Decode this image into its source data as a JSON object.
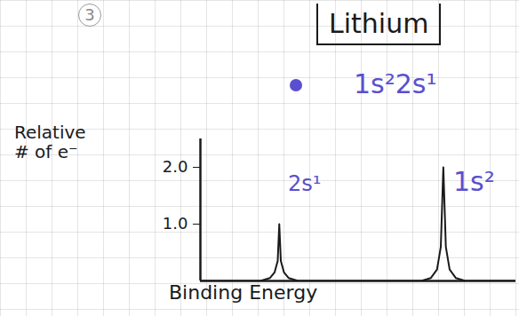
{
  "chart_data": {
    "type": "line",
    "title": "Lithium",
    "question_number": "3",
    "ylabel": "Relative # of e⁻",
    "xlabel": "Binding Energy",
    "annotations": [
      "1s²2s¹",
      "2s¹",
      "1s²"
    ],
    "x": [
      0,
      1.9,
      2.2,
      2.35,
      2.45,
      2.5,
      2.55,
      2.65,
      2.8,
      3.1,
      7.0,
      7.3,
      7.5,
      7.62,
      7.7,
      7.78,
      7.9,
      8.1,
      8.4,
      10
    ],
    "values": [
      0,
      0,
      0.05,
      0.15,
      0.35,
      1,
      0.35,
      0.15,
      0.05,
      0,
      0,
      0.05,
      0.2,
      0.6,
      2,
      0.6,
      0.2,
      0.05,
      0,
      0
    ],
    "color": "#1a1a1a",
    "xlim": [
      0,
      10
    ],
    "ylim": [
      0,
      2.5
    ],
    "yticks": [
      1,
      2
    ],
    "tick_labels": "y"
  }
}
